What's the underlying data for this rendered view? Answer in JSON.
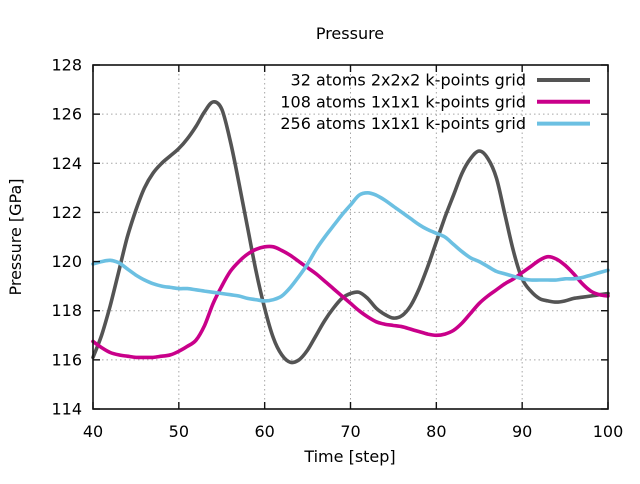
{
  "title": "Pressure",
  "chart_data": {
    "type": "line",
    "title": "Pressure",
    "xlabel": "Time [step]",
    "ylabel": "Pressure [GPa]",
    "xlim": [
      40,
      100
    ],
    "ylim": [
      114,
      128
    ],
    "x_ticks": [
      40,
      50,
      60,
      70,
      80,
      90,
      100
    ],
    "y_ticks": [
      114,
      116,
      118,
      120,
      122,
      124,
      126,
      128
    ],
    "grid": "dotted-gray",
    "legend_position": "top-right-inside",
    "background": "#ffffff",
    "grid_color": "#a6a6a6",
    "border_color": "#111111",
    "x": [
      40,
      41,
      42,
      43,
      44,
      45,
      46,
      47,
      48,
      49,
      50,
      51,
      52,
      53,
      54,
      55,
      56,
      57,
      58,
      59,
      60,
      61,
      62,
      63,
      64,
      65,
      66,
      67,
      68,
      69,
      70,
      71,
      72,
      73,
      74,
      75,
      76,
      77,
      78,
      79,
      80,
      81,
      82,
      83,
      84,
      85,
      86,
      87,
      88,
      89,
      90,
      91,
      92,
      93,
      94,
      95,
      96,
      97,
      98,
      99,
      100
    ],
    "series": [
      {
        "name": "32 atoms 2x2x2 k-points grid",
        "color": "#545454",
        "values": [
          116.1,
          117.0,
          118.2,
          119.6,
          121.0,
          122.1,
          123.0,
          123.6,
          124.0,
          124.3,
          124.6,
          125.0,
          125.5,
          126.1,
          126.5,
          126.2,
          124.9,
          123.2,
          121.4,
          119.6,
          118.1,
          116.9,
          116.2,
          115.9,
          116.0,
          116.4,
          117.0,
          117.6,
          118.1,
          118.5,
          118.7,
          118.75,
          118.5,
          118.1,
          117.85,
          117.7,
          117.8,
          118.2,
          118.9,
          119.8,
          120.8,
          121.8,
          122.7,
          123.6,
          124.2,
          124.5,
          124.2,
          123.4,
          121.9,
          120.4,
          119.3,
          118.8,
          118.5,
          118.4,
          118.35,
          118.4,
          118.5,
          118.55,
          118.6,
          118.65,
          118.7
        ]
      },
      {
        "name": "108 atoms 1x1x1 k-points grid",
        "color": "#c9008a",
        "values": [
          116.75,
          116.5,
          116.3,
          116.2,
          116.15,
          116.1,
          116.1,
          116.1,
          116.15,
          116.2,
          116.35,
          116.55,
          116.8,
          117.4,
          118.3,
          119.0,
          119.6,
          120.0,
          120.3,
          120.5,
          120.6,
          120.6,
          120.45,
          120.25,
          120.0,
          119.75,
          119.5,
          119.2,
          118.9,
          118.6,
          118.3,
          118.0,
          117.75,
          117.55,
          117.45,
          117.4,
          117.35,
          117.25,
          117.15,
          117.05,
          117.0,
          117.05,
          117.2,
          117.5,
          117.9,
          118.3,
          118.6,
          118.85,
          119.1,
          119.3,
          119.55,
          119.8,
          120.05,
          120.2,
          120.1,
          119.85,
          119.5,
          119.1,
          118.8,
          118.65,
          118.6
        ]
      },
      {
        "name": "256 atoms 1x1x1 k-points grid",
        "color": "#6cc0e2",
        "values": [
          119.9,
          120.0,
          120.05,
          119.95,
          119.7,
          119.45,
          119.25,
          119.1,
          119.0,
          118.95,
          118.9,
          118.9,
          118.85,
          118.8,
          118.75,
          118.7,
          118.65,
          118.6,
          118.5,
          118.45,
          118.4,
          118.45,
          118.6,
          118.95,
          119.4,
          119.9,
          120.5,
          121.0,
          121.45,
          121.9,
          122.3,
          122.7,
          122.8,
          122.7,
          122.5,
          122.25,
          122.0,
          121.75,
          121.5,
          121.3,
          121.15,
          121.0,
          120.7,
          120.4,
          120.15,
          120.0,
          119.8,
          119.6,
          119.5,
          119.4,
          119.3,
          119.25,
          119.25,
          119.25,
          119.25,
          119.3,
          119.3,
          119.35,
          119.45,
          119.55,
          119.65
        ]
      }
    ]
  }
}
